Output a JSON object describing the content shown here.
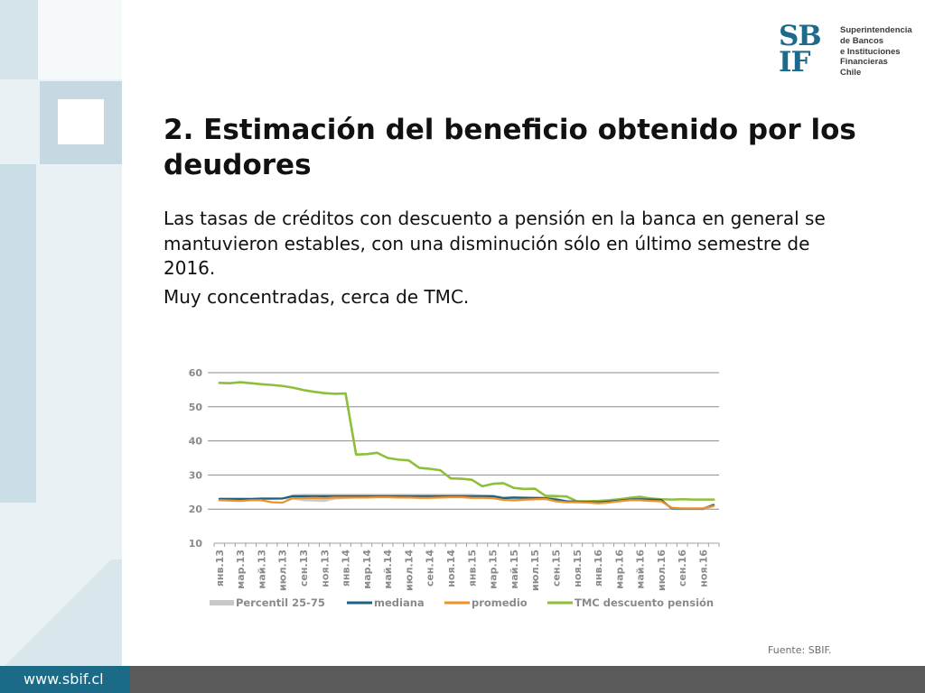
{
  "slide": {
    "title": "2. Estimación del beneficio obtenido por los deudores",
    "paragraph1": "Las tasas de créditos con descuento a pensión en la banca en general se mantuvieron estables, con una disminución sólo en último semestre de 2016.",
    "paragraph2": "Muy concentradas, cerca de TMC.",
    "source": "Fuente: SBIF.",
    "footer_url": "www.sbif.cl"
  },
  "logo": {
    "mark_line1": "SB",
    "mark_line2": "IF",
    "text_lines": [
      "Superintendencia",
      "de Bancos",
      "e Instituciones",
      "Financieras",
      "Chile"
    ],
    "color": "#1d6a8a"
  },
  "colors": {
    "percentil": "#c8c8c8",
    "mediana": "#1f5f7f",
    "promedio": "#f0922a",
    "tmc": "#8fbf3a",
    "footer": "#5a5a5a",
    "footer_url_bg": "#1b6b88"
  },
  "chart_data": {
    "type": "line",
    "title": "",
    "xlabel": "",
    "ylabel": "",
    "ylim": [
      10,
      60
    ],
    "yticks": [
      10,
      20,
      30,
      40,
      50,
      60
    ],
    "grid": true,
    "legend_position": "bottom",
    "x": [
      "янв.13",
      "фев.13",
      "мар.13",
      "апр.13",
      "май.13",
      "июн.13",
      "июл.13",
      "авг.13",
      "сен.13",
      "окт.13",
      "ноя.13",
      "дек.13",
      "янв.14",
      "фев.14",
      "мар.14",
      "апр.14",
      "май.14",
      "июн.14",
      "июл.14",
      "авг.14",
      "сен.14",
      "окт.14",
      "ноя.14",
      "дек.14",
      "янв.15",
      "фев.15",
      "мар.15",
      "апр.15",
      "май.15",
      "июн.15",
      "июл.15",
      "авг.15",
      "сен.15",
      "окт.15",
      "ноя.15",
      "дек.15",
      "янв.16",
      "фев.16",
      "мар.16",
      "апр.16",
      "май.16",
      "июн.16",
      "июл.16",
      "авг.16",
      "сен.16",
      "окт.16",
      "ноя.16",
      "дек.16"
    ],
    "x_tick_labels": [
      "янв.13",
      "мар.13",
      "май.13",
      "июл.13",
      "сен.13",
      "ноя.13",
      "янв.14",
      "мар.14",
      "май.14",
      "июл.14",
      "сен.14",
      "ноя.14",
      "янв.15",
      "мар.15",
      "май.15",
      "июл.15",
      "сен.15",
      "ноя.15",
      "янв.16",
      "мар.16",
      "май.16",
      "июл.16",
      "сен.16",
      "ноя.16"
    ],
    "series": [
      {
        "name": "Percentil 25-75",
        "kind": "band",
        "lower": [
          22.8,
          22.5,
          22.5,
          22.6,
          22.7,
          22.7,
          22.9,
          22.8,
          22.3,
          22.2,
          22.1,
          22.8,
          23.0,
          23.1,
          23.2,
          23.2,
          23.3,
          23.3,
          23.3,
          23.2,
          23.2,
          23.3,
          23.4,
          23.4,
          23.2,
          23.3,
          23.2,
          22.5,
          22.2,
          22.4,
          22.6,
          22.6,
          22.0,
          21.9,
          21.9,
          21.8,
          21.6,
          21.8,
          22.0,
          22.4,
          22.3,
          22.2,
          22.1,
          19.8,
          19.7,
          19.7,
          19.7,
          20.6
        ],
        "upper": [
          23.4,
          23.3,
          23.3,
          23.2,
          23.3,
          23.3,
          23.4,
          24.4,
          24.5,
          24.5,
          24.5,
          24.5,
          24.5,
          24.5,
          24.5,
          24.5,
          24.5,
          24.5,
          24.5,
          24.5,
          24.5,
          24.5,
          24.5,
          24.5,
          24.5,
          24.3,
          24.2,
          23.8,
          23.8,
          23.8,
          23.6,
          23.7,
          23.4,
          22.6,
          22.5,
          22.4,
          22.4,
          22.7,
          23.0,
          23.3,
          23.4,
          23.3,
          23.1,
          20.5,
          20.5,
          20.5,
          20.5,
          21.8
        ]
      },
      {
        "name": "mediana",
        "values": [
          23.0,
          23.0,
          23.0,
          23.0,
          23.1,
          23.1,
          23.1,
          23.8,
          23.8,
          23.8,
          23.8,
          23.8,
          23.8,
          23.8,
          23.8,
          23.8,
          23.8,
          23.8,
          23.8,
          23.8,
          23.8,
          23.8,
          23.8,
          23.8,
          23.8,
          23.8,
          23.8,
          23.2,
          23.4,
          23.3,
          23.3,
          23.2,
          22.8,
          22.3,
          22.2,
          22.1,
          22.0,
          22.2,
          22.5,
          22.8,
          22.9,
          22.8,
          22.7,
          20.2,
          20.1,
          20.1,
          20.1,
          21.2
        ]
      },
      {
        "name": "promedio",
        "values": [
          22.6,
          22.5,
          22.4,
          22.6,
          22.6,
          22.0,
          21.9,
          23.2,
          23.2,
          23.3,
          23.2,
          23.4,
          23.4,
          23.4,
          23.4,
          23.5,
          23.5,
          23.4,
          23.4,
          23.3,
          23.3,
          23.4,
          23.5,
          23.5,
          23.3,
          23.3,
          23.2,
          22.7,
          22.6,
          22.8,
          22.9,
          23.0,
          22.3,
          22.0,
          22.0,
          21.9,
          21.7,
          21.9,
          22.3,
          22.6,
          22.6,
          22.4,
          22.3,
          20.4,
          20.2,
          20.2,
          20.2,
          20.9
        ]
      },
      {
        "name": "TMC descuento pensión",
        "values": [
          57.0,
          56.9,
          57.2,
          56.9,
          56.6,
          56.4,
          56.1,
          55.6,
          54.9,
          54.4,
          54.0,
          53.8,
          53.9,
          36.0,
          36.1,
          36.5,
          35.0,
          34.5,
          34.3,
          32.1,
          31.8,
          31.4,
          29.0,
          28.9,
          28.6,
          26.7,
          27.4,
          27.6,
          26.2,
          25.9,
          26.0,
          23.9,
          23.8,
          23.7,
          22.3,
          22.3,
          22.4,
          22.6,
          22.9,
          23.3,
          23.6,
          23.1,
          22.9,
          22.8,
          22.9,
          22.8,
          22.8,
          22.8
        ]
      }
    ]
  }
}
